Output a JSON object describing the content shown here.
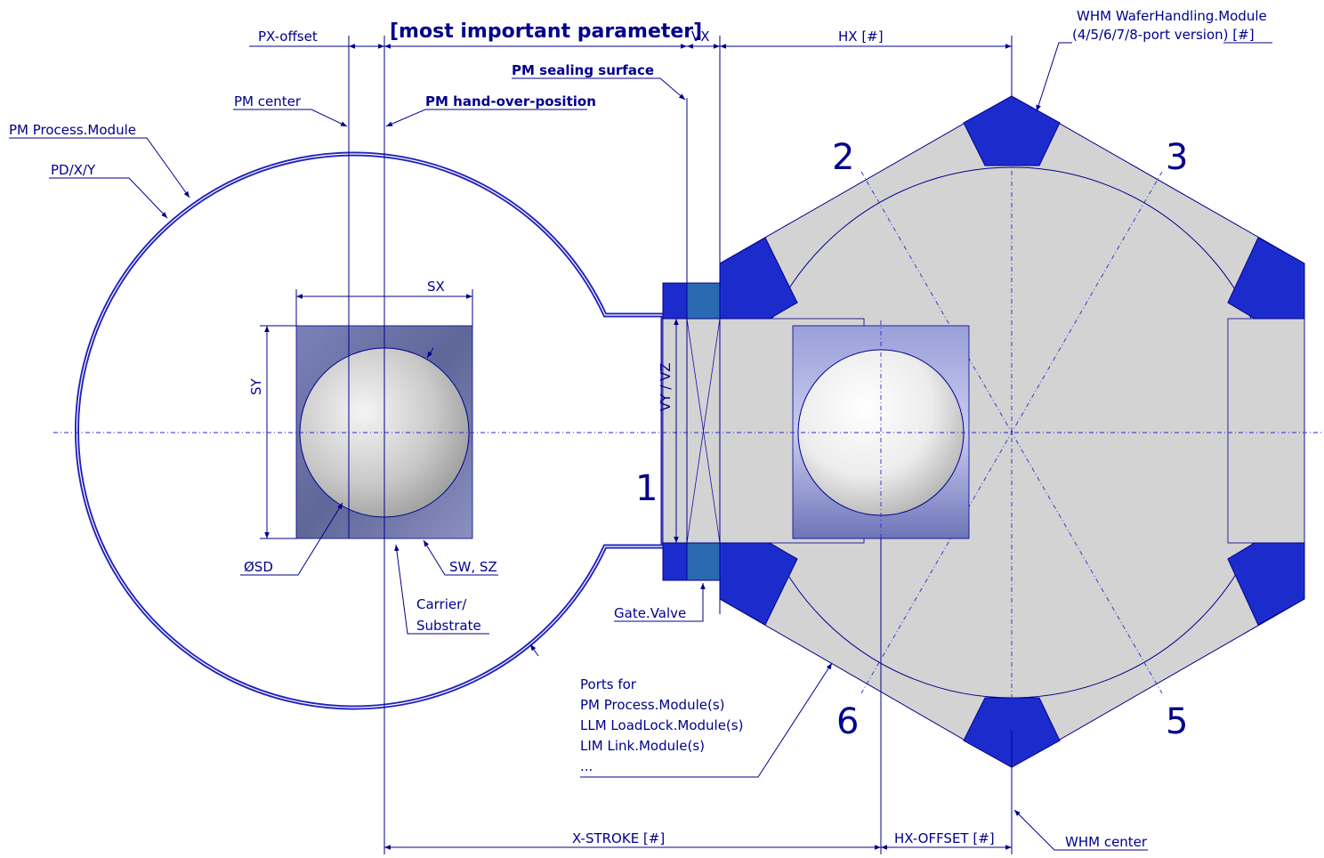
{
  "labels": {
    "px_offset": "PX-offset",
    "most_important": "[most important parameter]",
    "vx": "VX",
    "hx": "HX [#]",
    "whm_module_line1": "WHM WaferHandling.Module",
    "whm_module_line2": "(4/5/6/7/8-port version) [#]",
    "pm_sealing_surface": "PM sealing surface",
    "pm_center": "PM center",
    "pm_hand_over": "PM hand-over-position",
    "pm_process_module": "PM Process.Module",
    "pd_xy": "PD/X/Y",
    "sx": "SX",
    "sy": "SY",
    "vy_vz": "VY / VZ",
    "sd": "ØSD",
    "sw_sz": "SW, SZ",
    "carrier_line1": "Carrier/",
    "carrier_line2": "Substrate",
    "gate_valve": "Gate.Valve",
    "ports_line1": "Ports for",
    "ports_line2": "PM Process.Module(s)",
    "ports_line3": "LLM LoadLock.Module(s)",
    "ports_line4": "LIM Link.Module(s)",
    "ports_line5": "...",
    "x_stroke": "X-STROKE  [#]",
    "hx_offset": "HX-OFFSET [#]",
    "whm_center": "WHM center"
  },
  "ports": {
    "p1": "1",
    "p2": "2",
    "p3": "3",
    "p5": "5",
    "p6": "6"
  },
  "colors": {
    "line": "#00008b",
    "port_blue": "#1c2ccc",
    "gate_blue": "#2a6ab0",
    "hex_fill": "#d3d3d3",
    "carrier": "#6f76a8"
  }
}
